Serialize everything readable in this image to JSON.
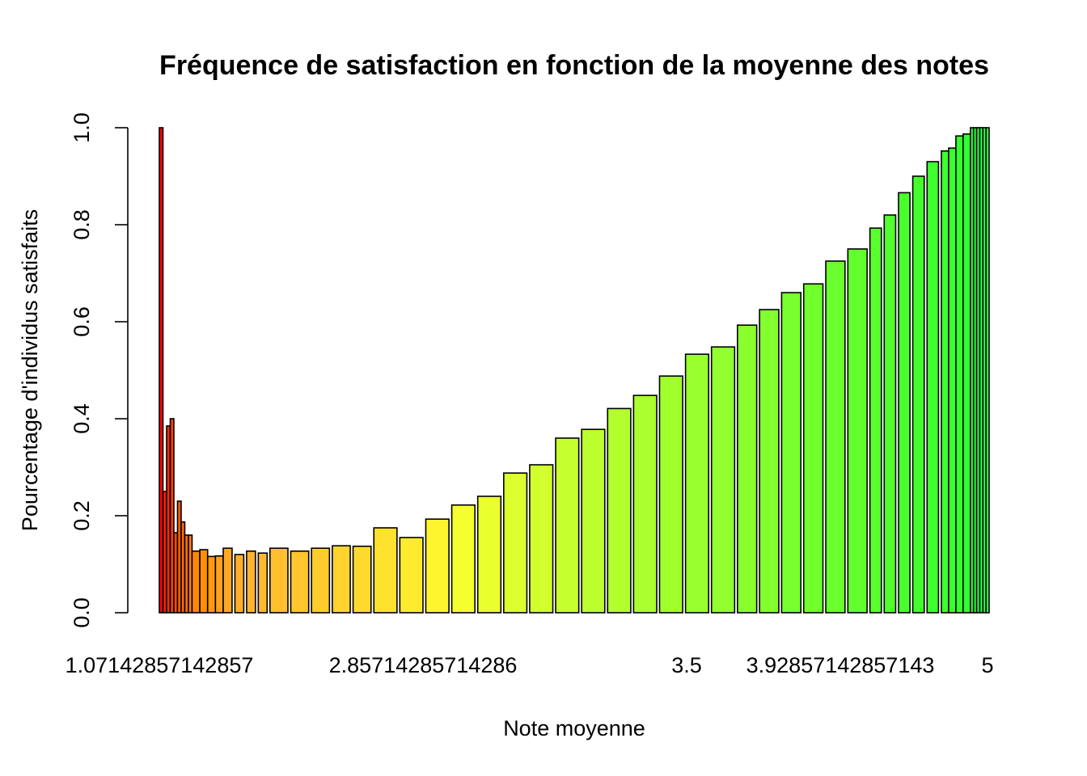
{
  "chart_data": {
    "type": "bar",
    "title": "Fréquence de satisfaction en fonction de la moyenne des notes",
    "xlabel": "Note moyenne",
    "ylabel": "Pourcentage d'individus satisfaits",
    "ylim": [
      0,
      1
    ],
    "y_ticks": [
      "0.0",
      "0.2",
      "0.4",
      "0.6",
      "0.8",
      "1.0"
    ],
    "x_tick_labels": [
      "1.07142857142857",
      "2.85714285714286",
      "3.5",
      "3.92857142857143",
      "5"
    ],
    "grid": false,
    "legend": "none",
    "bars": [
      {
        "value": 1.0,
        "color": "#ff0000"
      },
      {
        "value": 0.25,
        "color": "#ff1a00"
      },
      {
        "value": 0.385,
        "color": "#ff2e00"
      },
      {
        "value": 0.4,
        "color": "#ff4000"
      },
      {
        "value": 0.165,
        "color": "#ff5000"
      },
      {
        "value": 0.23,
        "color": "#ff5e00"
      },
      {
        "value": 0.187,
        "color": "#ff6a00"
      },
      {
        "value": 0.16,
        "color": "#ff7400"
      },
      {
        "value": 0.16,
        "color": "#ff7e00"
      },
      {
        "value": 0.127,
        "color": "#ff8800"
      },
      {
        "value": 0.13,
        "color": "#ff9000"
      },
      {
        "value": 0.116,
        "color": "#ff9a10"
      },
      {
        "value": 0.117,
        "color": "#ffa020"
      },
      {
        "value": 0.133,
        "color": "#ffa828"
      },
      {
        "value": 0.12,
        "color": "#ffae2c"
      },
      {
        "value": 0.127,
        "color": "#ffb42e"
      },
      {
        "value": 0.123,
        "color": "#ffba2e"
      },
      {
        "value": 0.133,
        "color": "#ffc02e"
      },
      {
        "value": 0.127,
        "color": "#ffc62e"
      },
      {
        "value": 0.133,
        "color": "#ffcc2e"
      },
      {
        "value": 0.138,
        "color": "#ffd42e"
      },
      {
        "value": 0.137,
        "color": "#ffda2e"
      },
      {
        "value": 0.175,
        "color": "#ffe22e"
      },
      {
        "value": 0.155,
        "color": "#ffeb2e"
      },
      {
        "value": 0.193,
        "color": "#fff52e"
      },
      {
        "value": 0.222,
        "color": "#f6ff2e"
      },
      {
        "value": 0.24,
        "color": "#eaff2e"
      },
      {
        "value": 0.288,
        "color": "#ddff2e"
      },
      {
        "value": 0.305,
        "color": "#d2ff2e"
      },
      {
        "value": 0.36,
        "color": "#c6ff2e"
      },
      {
        "value": 0.378,
        "color": "#bcff2e"
      },
      {
        "value": 0.421,
        "color": "#b3ff2e"
      },
      {
        "value": 0.448,
        "color": "#aaff2e"
      },
      {
        "value": 0.488,
        "color": "#a2ff2e"
      },
      {
        "value": 0.533,
        "color": "#9aff2e"
      },
      {
        "value": 0.548,
        "color": "#92ff2e"
      },
      {
        "value": 0.593,
        "color": "#8aff2e"
      },
      {
        "value": 0.625,
        "color": "#82ff2e"
      },
      {
        "value": 0.66,
        "color": "#7aff2e"
      },
      {
        "value": 0.678,
        "color": "#72ff2e"
      },
      {
        "value": 0.725,
        "color": "#6aff2e"
      },
      {
        "value": 0.75,
        "color": "#62ff2e"
      },
      {
        "value": 0.793,
        "color": "#5aff2e"
      },
      {
        "value": 0.82,
        "color": "#52ff2e"
      },
      {
        "value": 0.866,
        "color": "#4aff2e"
      },
      {
        "value": 0.9,
        "color": "#44ff2e"
      },
      {
        "value": 0.93,
        "color": "#40ff2e"
      },
      {
        "value": 0.952,
        "color": "#3cff2e"
      },
      {
        "value": 0.958,
        "color": "#38ff2e"
      },
      {
        "value": 0.983,
        "color": "#34ff30"
      },
      {
        "value": 0.987,
        "color": "#30ff34"
      },
      {
        "value": 1.0,
        "color": "#2eff38"
      },
      {
        "value": 1.0,
        "color": "#2eff3c"
      },
      {
        "value": 1.0,
        "color": "#2eff40"
      },
      {
        "value": 1.0,
        "color": "#2eff44"
      },
      {
        "value": 1.0,
        "color": "#2eff48"
      },
      {
        "value": 1.0,
        "color": "#2eff4c"
      }
    ]
  }
}
